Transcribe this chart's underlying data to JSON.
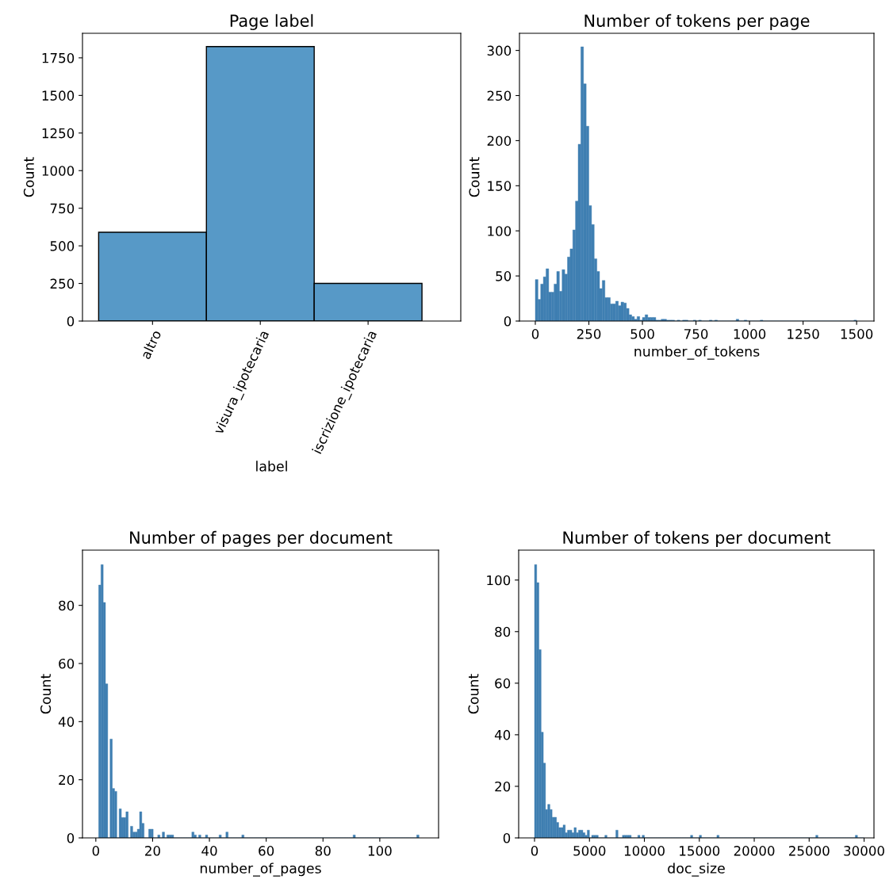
{
  "chart_data": [
    {
      "type": "bar",
      "title": "Page label",
      "xlabel": "label",
      "ylabel": "Count",
      "categories": [
        "altro",
        "visura_ipotecaria",
        "iscrizione_ipotecaria"
      ],
      "values": [
        590,
        1825,
        250
      ],
      "color": "#5799c7",
      "ylim": [
        0,
        1913
      ],
      "yticks": [
        0,
        250,
        500,
        750,
        1000,
        1250,
        1500,
        1750
      ]
    },
    {
      "type": "histogram",
      "title": "Number of tokens per page",
      "xlabel": "number_of_tokens",
      "ylabel": "Count",
      "color": "#3f7fb2",
      "bins": [
        0,
        12.5,
        25,
        37.5,
        50,
        62.5,
        75,
        87.5,
        100,
        112.5,
        125,
        137.5,
        150,
        162.5,
        175,
        187.5,
        200,
        212.5,
        225,
        237.5,
        250,
        262.5,
        275,
        287.5,
        300,
        312.5,
        325,
        337.5,
        350,
        362.5,
        375,
        387.5,
        400,
        412.5,
        425,
        437.5,
        450,
        462.5,
        475,
        487.5,
        500,
        512.5,
        525,
        537.5,
        550,
        562.5,
        575,
        587.5,
        600,
        612.5,
        625,
        637.5,
        650,
        662.5,
        675,
        687.5,
        700,
        712.5,
        725,
        737.5,
        750,
        762.5,
        775,
        787.5,
        800,
        812.5,
        825,
        837.5,
        850,
        862.5,
        875,
        887.5,
        900,
        912.5,
        925,
        937.5,
        950,
        962.5,
        975,
        987.5,
        1000,
        1012.5,
        1025,
        1037.5,
        1050,
        1062.5,
        1075,
        1087.5,
        1100,
        1112.5,
        1125,
        1137.5,
        1150,
        1162.5,
        1175,
        1187.5,
        1200,
        1212.5,
        1225,
        1237.5,
        1250,
        1262.5,
        1275,
        1287.5,
        1300,
        1312.5,
        1325,
        1337.5,
        1350,
        1362.5,
        1375,
        1387.5,
        1400,
        1412.5,
        1425,
        1437.5,
        1450,
        1462.5,
        1475,
        1487.5,
        1500
      ],
      "values": [
        46,
        24,
        41,
        49,
        58,
        32,
        32,
        41,
        55,
        33,
        57,
        52,
        71,
        80,
        101,
        133,
        196,
        304,
        263,
        216,
        128,
        107,
        69,
        55,
        36,
        45,
        26,
        26,
        19,
        19,
        22,
        17,
        21,
        20,
        14,
        7,
        5,
        2,
        5,
        1,
        4,
        7,
        4,
        4,
        4,
        1,
        1,
        2,
        2,
        1,
        1,
        1,
        0,
        1,
        0,
        1,
        1,
        0,
        0,
        1,
        0,
        1,
        0,
        0,
        0,
        1,
        0,
        1,
        0,
        0,
        0,
        0,
        0,
        0,
        0,
        2,
        0,
        0,
        1,
        0,
        0,
        0,
        0,
        0,
        1,
        0,
        0,
        0,
        0,
        0,
        0,
        0,
        0,
        0,
        0,
        0,
        0,
        0,
        0,
        0,
        0,
        0,
        0,
        0,
        0,
        0,
        0,
        0,
        0,
        0,
        0,
        0,
        0,
        0,
        0,
        0,
        0,
        0,
        0,
        1
      ],
      "xlim": [
        -74,
        1581
      ],
      "xticks": [
        0,
        250,
        500,
        750,
        1000,
        1250,
        1500
      ],
      "ylim": [
        0,
        319
      ],
      "yticks": [
        0,
        50,
        100,
        150,
        200,
        250,
        300
      ]
    },
    {
      "type": "histogram",
      "title": "Number of pages per document",
      "xlabel": "number_of_pages",
      "ylabel": "Count",
      "color": "#3f7fb2",
      "bins": [
        1,
        1.8,
        2.6,
        3.4,
        4.2,
        5,
        5.8,
        6.6,
        7.4,
        8.2,
        9,
        9.8,
        10.6,
        11.4,
        12.2,
        13,
        13.8,
        14.6,
        15.4,
        16.2,
        17,
        17.8,
        18.6,
        19.4,
        20.2,
        21,
        21.8,
        22.6,
        23.4,
        24.2,
        25,
        25.8,
        26.6,
        27.4,
        28.2,
        29,
        29.8,
        30.6,
        31.4,
        32.2,
        33,
        33.8,
        34.6,
        35.4,
        36.2,
        37,
        37.8,
        38.6,
        39.4,
        40.2,
        41,
        41.8,
        42.6,
        43.4,
        44.2,
        45,
        45.8,
        46.6,
        47.4,
        48.2,
        49,
        49.8,
        50.6,
        51.4,
        52.2,
        53,
        53.8,
        54.6,
        55.4,
        56.2,
        57,
        57.8,
        58.6,
        59.4,
        60.2,
        61,
        61.8,
        62.6,
        63.4,
        64.2,
        65,
        65.8,
        66.6,
        67.4,
        68.2,
        69,
        69.8,
        70.6,
        71.4,
        72.2,
        73,
        73.8,
        74.6,
        75.4,
        76.2,
        77,
        77.8,
        78.6,
        79.4,
        80.2,
        81,
        81.8,
        82.6,
        83.4,
        84.2,
        85,
        85.8,
        86.6,
        87.4,
        88.2,
        89,
        89.8,
        90.6,
        91.4,
        92.2,
        93,
        93.8,
        94.6,
        95.4,
        96.2,
        97,
        97.8,
        98.6,
        99.4,
        100.2,
        101,
        101.8,
        102.6,
        103.4,
        104.2,
        105,
        105.8,
        106.6,
        107.4,
        108.2,
        109,
        109.8,
        110.6,
        111.4,
        112.2,
        113,
        113.8
      ],
      "values": [
        87,
        94,
        81,
        53,
        0,
        34,
        17,
        16,
        0,
        10,
        7,
        7,
        9,
        0,
        4,
        2,
        2,
        3,
        9,
        5,
        0,
        0,
        3,
        3,
        0,
        0,
        1,
        0,
        2,
        0,
        1,
        1,
        1,
        0,
        0,
        0,
        0,
        0,
        0,
        0,
        0,
        2,
        1,
        0,
        1,
        0,
        0,
        1,
        0,
        0,
        0,
        0,
        0,
        1,
        0,
        0,
        2,
        0,
        0,
        0,
        0,
        0,
        0,
        1,
        0,
        0,
        0,
        0,
        0,
        0,
        0,
        0,
        0,
        0,
        0,
        0,
        0,
        0,
        0,
        0,
        0,
        0,
        0,
        0,
        0,
        0,
        0,
        0,
        0,
        0,
        0,
        0,
        0,
        0,
        0,
        0,
        0,
        0,
        0,
        0,
        0,
        0,
        0,
        0,
        0,
        0,
        0,
        0,
        0,
        0,
        0,
        0,
        1,
        0,
        0,
        0,
        0,
        0,
        0,
        0,
        0,
        0,
        0,
        0,
        0,
        0,
        0,
        0,
        0,
        0,
        0,
        0,
        0,
        0,
        0,
        0,
        0,
        0,
        0,
        0,
        1
      ],
      "xlim": [
        -4.7,
        120.7
      ],
      "xticks": [
        0,
        20,
        40,
        60,
        80,
        100
      ],
      "ylim": [
        0,
        99
      ],
      "yticks": [
        0,
        20,
        40,
        60,
        80
      ]
    },
    {
      "type": "histogram",
      "title": "Number of tokens per document",
      "xlabel": "doc_size",
      "ylabel": "Count",
      "color": "#3f7fb2",
      "bins": [
        0,
        200,
        400,
        600,
        800,
        1000,
        1200,
        1400,
        1600,
        1800,
        2000,
        2200,
        2400,
        2600,
        2800,
        3000,
        3200,
        3400,
        3600,
        3800,
        4000,
        4200,
        4400,
        4600,
        4800,
        5000,
        5200,
        5400,
        5600,
        5800,
        6000,
        6200,
        6400,
        6600,
        6800,
        7000,
        7200,
        7400,
        7600,
        7800,
        8000,
        8200,
        8400,
        8600,
        8800,
        9000,
        9200,
        9400,
        9600,
        9800,
        10000,
        10200,
        10400,
        10600,
        10800,
        11000,
        11200,
        11400,
        11600,
        11800,
        12000,
        12200,
        12400,
        12600,
        12800,
        13000,
        13200,
        13400,
        13600,
        13800,
        14000,
        14200,
        14400,
        14600,
        14800,
        15000,
        15200,
        15400,
        15600,
        15800,
        16000,
        16200,
        16400,
        16600,
        16800,
        17000,
        17200,
        17400,
        17600,
        17800,
        18000,
        18200,
        18400,
        18600,
        18800,
        19000,
        19200,
        19400,
        19600,
        19800,
        20000,
        20200,
        20400,
        20600,
        20800,
        21000,
        21200,
        21400,
        21600,
        21800,
        22000,
        22200,
        22400,
        22600,
        22800,
        23000,
        23200,
        23400,
        23600,
        23800,
        24000,
        24200,
        24400,
        24600,
        24800,
        25000,
        25200,
        25400,
        25600,
        25800,
        26000,
        26200,
        26400,
        26600,
        26800,
        27000,
        27200,
        27400,
        27600,
        27800,
        28000,
        28200,
        28400,
        28600,
        28800,
        29000,
        29200,
        29400,
        29600,
        29800,
        30000
      ],
      "values": [
        106,
        99,
        73,
        41,
        29,
        11,
        13,
        11,
        8,
        8,
        6,
        4,
        4,
        5,
        2,
        3,
        3,
        2,
        4,
        2,
        3,
        3,
        2,
        1,
        3,
        0,
        1,
        1,
        1,
        0,
        0,
        0,
        1,
        0,
        0,
        0,
        0,
        3,
        0,
        0,
        1,
        1,
        1,
        1,
        0,
        0,
        0,
        1,
        0,
        1,
        0,
        0,
        0,
        0,
        0,
        0,
        0,
        0,
        0,
        0,
        0,
        0,
        0,
        0,
        0,
        0,
        0,
        0,
        0,
        0,
        0,
        1,
        0,
        0,
        0,
        1,
        0,
        0,
        0,
        0,
        0,
        0,
        0,
        1,
        0,
        0,
        0,
        0,
        0,
        0,
        0,
        0,
        0,
        0,
        0,
        0,
        0,
        0,
        0,
        0,
        0,
        0,
        0,
        0,
        0,
        0,
        0,
        0,
        0,
        0,
        0,
        0,
        0,
        0,
        0,
        0,
        0,
        0,
        0,
        0,
        0,
        0,
        0,
        0,
        0,
        0,
        0,
        0,
        1,
        0,
        0,
        0,
        0,
        0,
        0,
        0,
        0,
        0,
        0,
        0,
        0,
        0,
        0,
        0,
        0,
        0,
        1,
        0,
        0,
        0
      ],
      "xlim": [
        -1444,
        30900
      ],
      "xticks": [
        0,
        5000,
        10000,
        15000,
        20000,
        25000,
        30000
      ],
      "ylim": [
        0,
        111.6
      ],
      "yticks": [
        0,
        20,
        40,
        60,
        80,
        100
      ]
    }
  ]
}
